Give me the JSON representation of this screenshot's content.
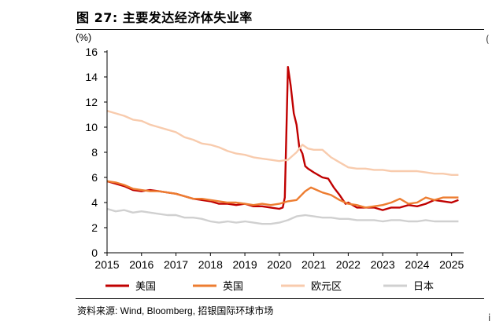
{
  "header": {
    "title": "图 27: 主要发达经济体失业率"
  },
  "footer": {
    "source": "资料来源: Wind, Bloomberg, 招银国际环球市场"
  },
  "edge_fragments": [
    "(",
    "i"
  ],
  "chart_data": {
    "type": "line",
    "ylabel": "(%)",
    "ylim": [
      0,
      16
    ],
    "yticks": [
      0,
      2,
      4,
      6,
      8,
      10,
      12,
      14,
      16
    ],
    "xlim": [
      2015,
      2025.35
    ],
    "xticks": [
      2015,
      2016,
      2017,
      2018,
      2019,
      2020,
      2021,
      2022,
      2023,
      2024,
      2025
    ],
    "grid": false,
    "legend_position": "bottom",
    "series": [
      {
        "name": "美国",
        "color": "#c00000",
        "width": 2.4,
        "points": [
          [
            2015.0,
            5.7
          ],
          [
            2015.25,
            5.5
          ],
          [
            2015.5,
            5.3
          ],
          [
            2015.75,
            5.0
          ],
          [
            2016.0,
            4.9
          ],
          [
            2016.25,
            5.0
          ],
          [
            2016.5,
            4.9
          ],
          [
            2016.75,
            4.8
          ],
          [
            2017.0,
            4.7
          ],
          [
            2017.25,
            4.5
          ],
          [
            2017.5,
            4.3
          ],
          [
            2017.75,
            4.2
          ],
          [
            2018.0,
            4.1
          ],
          [
            2018.25,
            3.9
          ],
          [
            2018.5,
            3.9
          ],
          [
            2018.75,
            3.8
          ],
          [
            2019.0,
            3.9
          ],
          [
            2019.25,
            3.7
          ],
          [
            2019.5,
            3.7
          ],
          [
            2019.75,
            3.6
          ],
          [
            2020.0,
            3.5
          ],
          [
            2020.1,
            3.6
          ],
          [
            2020.16,
            4.4
          ],
          [
            2020.25,
            14.8
          ],
          [
            2020.33,
            13.3
          ],
          [
            2020.42,
            11.1
          ],
          [
            2020.5,
            10.2
          ],
          [
            2020.58,
            8.4
          ],
          [
            2020.67,
            7.9
          ],
          [
            2020.75,
            6.9
          ],
          [
            2020.83,
            6.7
          ],
          [
            2021.0,
            6.4
          ],
          [
            2021.25,
            6.0
          ],
          [
            2021.42,
            5.9
          ],
          [
            2021.58,
            5.2
          ],
          [
            2021.75,
            4.6
          ],
          [
            2021.92,
            3.9
          ],
          [
            2022.0,
            4.0
          ],
          [
            2022.25,
            3.6
          ],
          [
            2022.5,
            3.6
          ],
          [
            2022.75,
            3.6
          ],
          [
            2023.0,
            3.4
          ],
          [
            2023.25,
            3.6
          ],
          [
            2023.5,
            3.6
          ],
          [
            2023.75,
            3.8
          ],
          [
            2024.0,
            3.7
          ],
          [
            2024.25,
            3.9
          ],
          [
            2024.5,
            4.2
          ],
          [
            2024.75,
            4.1
          ],
          [
            2025.0,
            4.0
          ],
          [
            2025.2,
            4.2
          ]
        ]
      },
      {
        "name": "英国",
        "color": "#ed7d31",
        "width": 2.4,
        "points": [
          [
            2015.0,
            5.7
          ],
          [
            2015.25,
            5.6
          ],
          [
            2015.5,
            5.4
          ],
          [
            2015.75,
            5.1
          ],
          [
            2016.0,
            5.0
          ],
          [
            2016.25,
            4.9
          ],
          [
            2016.5,
            4.9
          ],
          [
            2016.75,
            4.8
          ],
          [
            2017.0,
            4.7
          ],
          [
            2017.25,
            4.5
          ],
          [
            2017.5,
            4.3
          ],
          [
            2017.75,
            4.3
          ],
          [
            2018.0,
            4.2
          ],
          [
            2018.25,
            4.1
          ],
          [
            2018.5,
            4.0
          ],
          [
            2018.75,
            4.0
          ],
          [
            2019.0,
            3.9
          ],
          [
            2019.25,
            3.8
          ],
          [
            2019.5,
            3.9
          ],
          [
            2019.75,
            3.8
          ],
          [
            2020.0,
            3.9
          ],
          [
            2020.25,
            4.1
          ],
          [
            2020.5,
            4.2
          ],
          [
            2020.75,
            4.9
          ],
          [
            2020.92,
            5.2
          ],
          [
            2021.0,
            5.1
          ],
          [
            2021.25,
            4.8
          ],
          [
            2021.5,
            4.6
          ],
          [
            2021.75,
            4.2
          ],
          [
            2022.0,
            3.9
          ],
          [
            2022.25,
            3.8
          ],
          [
            2022.5,
            3.6
          ],
          [
            2022.75,
            3.7
          ],
          [
            2023.0,
            3.8
          ],
          [
            2023.25,
            4.0
          ],
          [
            2023.5,
            4.3
          ],
          [
            2023.75,
            3.9
          ],
          [
            2024.0,
            4.0
          ],
          [
            2024.25,
            4.4
          ],
          [
            2024.5,
            4.2
          ],
          [
            2024.75,
            4.4
          ],
          [
            2025.0,
            4.4
          ],
          [
            2025.2,
            4.4
          ]
        ]
      },
      {
        "name": "欧元区",
        "color": "#f8cbad",
        "width": 2.4,
        "points": [
          [
            2015.0,
            11.3
          ],
          [
            2015.25,
            11.1
          ],
          [
            2015.5,
            10.9
          ],
          [
            2015.75,
            10.6
          ],
          [
            2016.0,
            10.5
          ],
          [
            2016.25,
            10.2
          ],
          [
            2016.5,
            10.0
          ],
          [
            2016.75,
            9.8
          ],
          [
            2017.0,
            9.6
          ],
          [
            2017.25,
            9.2
          ],
          [
            2017.5,
            9.0
          ],
          [
            2017.75,
            8.7
          ],
          [
            2018.0,
            8.6
          ],
          [
            2018.25,
            8.4
          ],
          [
            2018.5,
            8.1
          ],
          [
            2018.75,
            7.9
          ],
          [
            2019.0,
            7.8
          ],
          [
            2019.25,
            7.6
          ],
          [
            2019.5,
            7.5
          ],
          [
            2019.75,
            7.4
          ],
          [
            2020.0,
            7.3
          ],
          [
            2020.25,
            7.4
          ],
          [
            2020.5,
            8.0
          ],
          [
            2020.67,
            8.6
          ],
          [
            2020.83,
            8.3
          ],
          [
            2021.0,
            8.2
          ],
          [
            2021.25,
            8.2
          ],
          [
            2021.5,
            7.6
          ],
          [
            2021.75,
            7.2
          ],
          [
            2022.0,
            6.8
          ],
          [
            2022.25,
            6.7
          ],
          [
            2022.5,
            6.7
          ],
          [
            2022.75,
            6.6
          ],
          [
            2023.0,
            6.6
          ],
          [
            2023.25,
            6.5
          ],
          [
            2023.5,
            6.5
          ],
          [
            2023.75,
            6.5
          ],
          [
            2024.0,
            6.5
          ],
          [
            2024.25,
            6.4
          ],
          [
            2024.5,
            6.3
          ],
          [
            2024.75,
            6.3
          ],
          [
            2025.0,
            6.2
          ],
          [
            2025.2,
            6.2
          ]
        ]
      },
      {
        "name": "日本",
        "color": "#d0d0d0",
        "width": 2.4,
        "points": [
          [
            2015.0,
            3.5
          ],
          [
            2015.25,
            3.3
          ],
          [
            2015.5,
            3.4
          ],
          [
            2015.75,
            3.2
          ],
          [
            2016.0,
            3.3
          ],
          [
            2016.25,
            3.2
          ],
          [
            2016.5,
            3.1
          ],
          [
            2016.75,
            3.0
          ],
          [
            2017.0,
            3.0
          ],
          [
            2017.25,
            2.8
          ],
          [
            2017.5,
            2.8
          ],
          [
            2017.75,
            2.7
          ],
          [
            2018.0,
            2.5
          ],
          [
            2018.25,
            2.4
          ],
          [
            2018.5,
            2.5
          ],
          [
            2018.75,
            2.4
          ],
          [
            2019.0,
            2.5
          ],
          [
            2019.25,
            2.4
          ],
          [
            2019.5,
            2.3
          ],
          [
            2019.75,
            2.3
          ],
          [
            2020.0,
            2.4
          ],
          [
            2020.25,
            2.6
          ],
          [
            2020.5,
            2.9
          ],
          [
            2020.75,
            3.0
          ],
          [
            2021.0,
            2.9
          ],
          [
            2021.25,
            2.8
          ],
          [
            2021.5,
            2.8
          ],
          [
            2021.75,
            2.7
          ],
          [
            2022.0,
            2.7
          ],
          [
            2022.25,
            2.6
          ],
          [
            2022.5,
            2.6
          ],
          [
            2022.75,
            2.6
          ],
          [
            2023.0,
            2.5
          ],
          [
            2023.25,
            2.6
          ],
          [
            2023.5,
            2.6
          ],
          [
            2023.75,
            2.5
          ],
          [
            2024.0,
            2.5
          ],
          [
            2024.25,
            2.6
          ],
          [
            2024.5,
            2.5
          ],
          [
            2024.75,
            2.5
          ],
          [
            2025.0,
            2.5
          ],
          [
            2025.2,
            2.5
          ]
        ]
      }
    ]
  }
}
